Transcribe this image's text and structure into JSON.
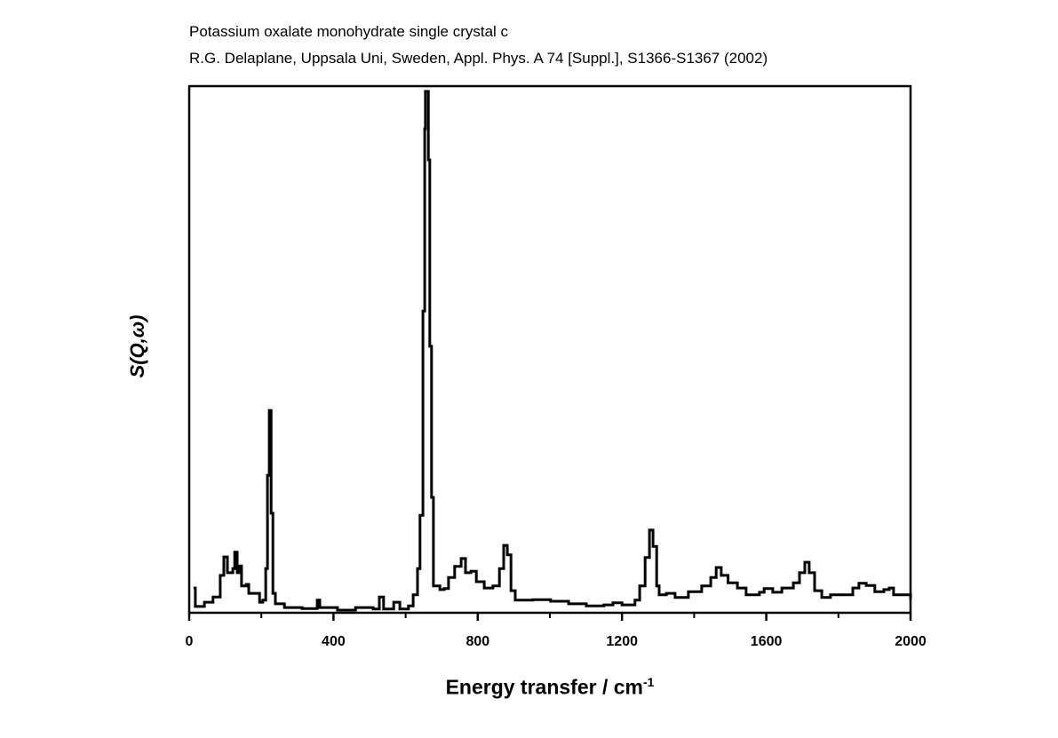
{
  "chart_data": {
    "type": "line",
    "title": "Potassium oxalate monohydrate single crystal c",
    "subtitle": "R.G. Delaplane, Uppsala Uni, Sweden, Appl. Phys. A 74 [Suppl.], S1366-S1367 (2002)",
    "xlabel": "Energy transfer / cm",
    "xlabel_superscript": "-1",
    "ylabel": "S(Q,ω)",
    "xlim": [
      0,
      2000
    ],
    "ylim": [
      0,
      100
    ],
    "xticks": [
      0,
      400,
      800,
      1200,
      1600,
      2000
    ],
    "xtick_labels": [
      "0",
      "400",
      "800",
      "1200",
      "1600",
      "2000"
    ],
    "minor_xticks": [
      200,
      600,
      1000,
      1400,
      1800
    ],
    "grid": false,
    "line_color": "#000000",
    "series": [
      {
        "name": "S(Q,ω)",
        "x": [
          12,
          17,
          42,
          66,
          86,
          96,
          106,
          121,
          126,
          133,
          140,
          145,
          158,
          165,
          185,
          195,
          204,
          212,
          217,
          222,
          227,
          232,
          239,
          264,
          313,
          355,
          362,
          411,
          461,
          510,
          527,
          539,
          567,
          584,
          608,
          621,
          633,
          640,
          648,
          653,
          655,
          663,
          667,
          672,
          677,
          695,
          707,
          719,
          736,
          754,
          766,
          781,
          796,
          818,
          842,
          860,
          872,
          882,
          892,
          904,
          953,
          1002,
          1052,
          1101,
          1150,
          1175,
          1200,
          1236,
          1249,
          1264,
          1276,
          1286,
          1296,
          1303,
          1323,
          1347,
          1384,
          1421,
          1446,
          1461,
          1475,
          1494,
          1520,
          1544,
          1581,
          1594,
          1618,
          1643,
          1675,
          1692,
          1707,
          1719,
          1734,
          1754,
          1778,
          1815,
          1840,
          1857,
          1877,
          1901,
          1926,
          1941,
          1953,
          2000
        ],
        "y": [
          4.7,
          1.2,
          2.0,
          3.0,
          7.1,
          10.6,
          7.6,
          8.4,
          11.5,
          7.6,
          8.9,
          5.1,
          5.4,
          3.7,
          3.7,
          2.0,
          2.4,
          8.4,
          26.1,
          38.4,
          18.9,
          3.7,
          1.7,
          1.0,
          0.8,
          2.4,
          1.0,
          0.5,
          1.0,
          0.7,
          3.0,
          0.7,
          2.0,
          0.7,
          1.3,
          3.4,
          8.4,
          18.5,
          57.3,
          91.9,
          99.0,
          86.0,
          50.6,
          21.9,
          5.1,
          4.4,
          4.6,
          6.7,
          8.8,
          10.3,
          7.6,
          7.9,
          5.9,
          4.7,
          5.1,
          8.4,
          12.8,
          11.0,
          4.2,
          2.4,
          2.5,
          2.2,
          1.7,
          1.3,
          1.5,
          1.9,
          1.5,
          2.4,
          5.1,
          10.5,
          15.7,
          12.6,
          5.1,
          3.4,
          3.7,
          2.9,
          4.0,
          5.1,
          6.7,
          8.6,
          7.1,
          5.7,
          4.7,
          3.4,
          3.9,
          4.6,
          3.9,
          4.7,
          5.7,
          7.6,
          9.6,
          7.6,
          4.2,
          2.9,
          3.4,
          3.4,
          4.7,
          5.6,
          5.2,
          4.0,
          4.4,
          4.7,
          3.4,
          2.5
        ]
      }
    ]
  }
}
